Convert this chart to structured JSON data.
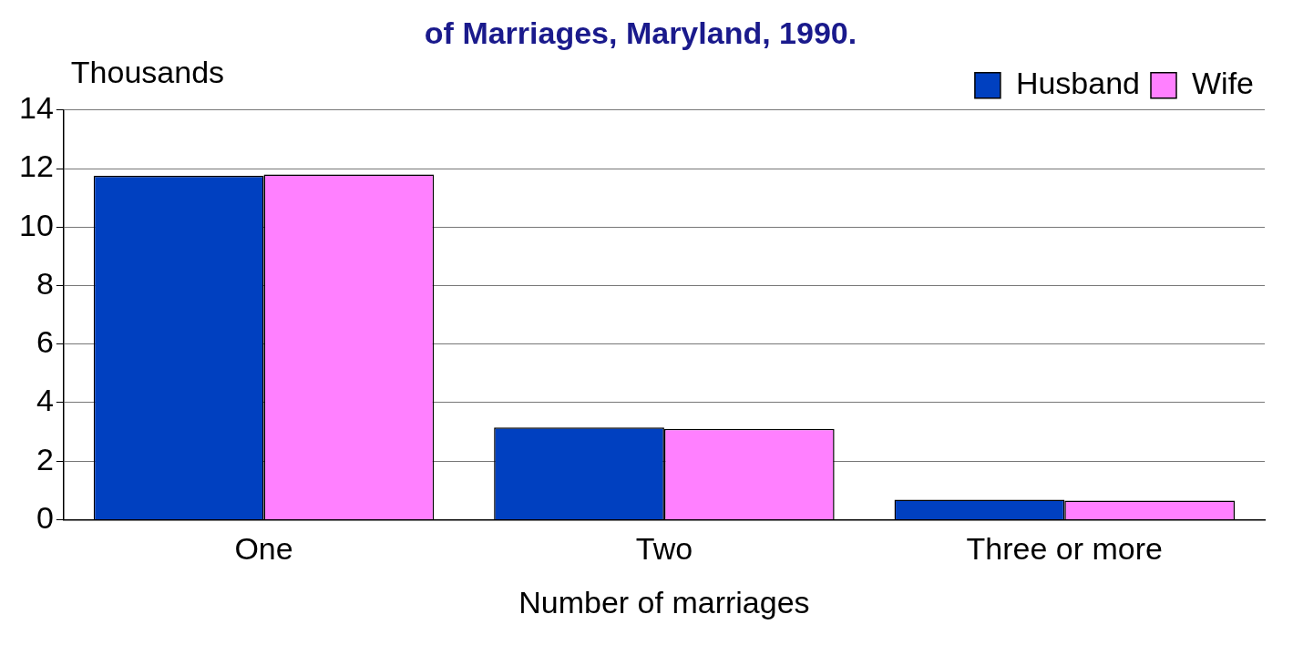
{
  "chart_data": {
    "type": "bar",
    "title": "of Marriages, Maryland, 1990.",
    "ylabel": "Thousands",
    "xlabel": "Number of marriages",
    "categories": [
      "One",
      "Two",
      "Three or more"
    ],
    "series": [
      {
        "name": "Husband",
        "color": "#0040c0",
        "values": [
          11.75,
          3.15,
          0.68
        ]
      },
      {
        "name": "Wife",
        "color": "#ff80ff",
        "values": [
          11.8,
          3.1,
          0.65
        ]
      }
    ],
    "ylim": [
      0,
      14
    ],
    "yticks": [
      0,
      2,
      4,
      6,
      8,
      10,
      12,
      14
    ],
    "grid": "y",
    "legend": "top right"
  }
}
